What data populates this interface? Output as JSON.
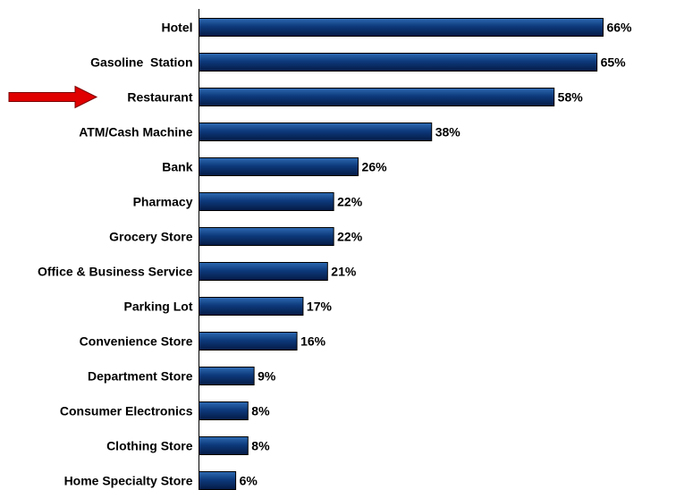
{
  "chart_data": {
    "type": "bar",
    "orientation": "horizontal",
    "categories": [
      "Hotel",
      "Gasoline  Station",
      "Restaurant",
      "ATM/Cash Machine",
      "Bank",
      "Pharmacy",
      "Grocery Store",
      "Office & Business Service",
      "Parking Lot",
      "Convenience Store",
      "Department Store",
      "Consumer Electronics",
      "Clothing Store",
      "Home Specialty Store"
    ],
    "values": [
      66,
      65,
      58,
      38,
      26,
      22,
      22,
      21,
      17,
      16,
      9,
      8,
      8,
      6
    ],
    "value_labels": [
      "66%",
      "65%",
      "58%",
      "38%",
      "26%",
      "22%",
      "22%",
      "21%",
      "17%",
      "16%",
      "9%",
      "8%",
      "8%",
      "6%"
    ],
    "unit": "%",
    "xlim": [
      0,
      70
    ],
    "grid": false,
    "legend": "none",
    "highlighted_category": "Restaurant",
    "highlight_marker": "red-arrow"
  },
  "colors": {
    "bar_fill_top": "#2e6bb3",
    "bar_fill_mid": "#0d3a7c",
    "bar_fill_bottom": "#051a45",
    "bar_stroke": "#000000",
    "axis": "#000000",
    "arrow_fill": "#e00000",
    "arrow_stroke": "#7a0000"
  }
}
